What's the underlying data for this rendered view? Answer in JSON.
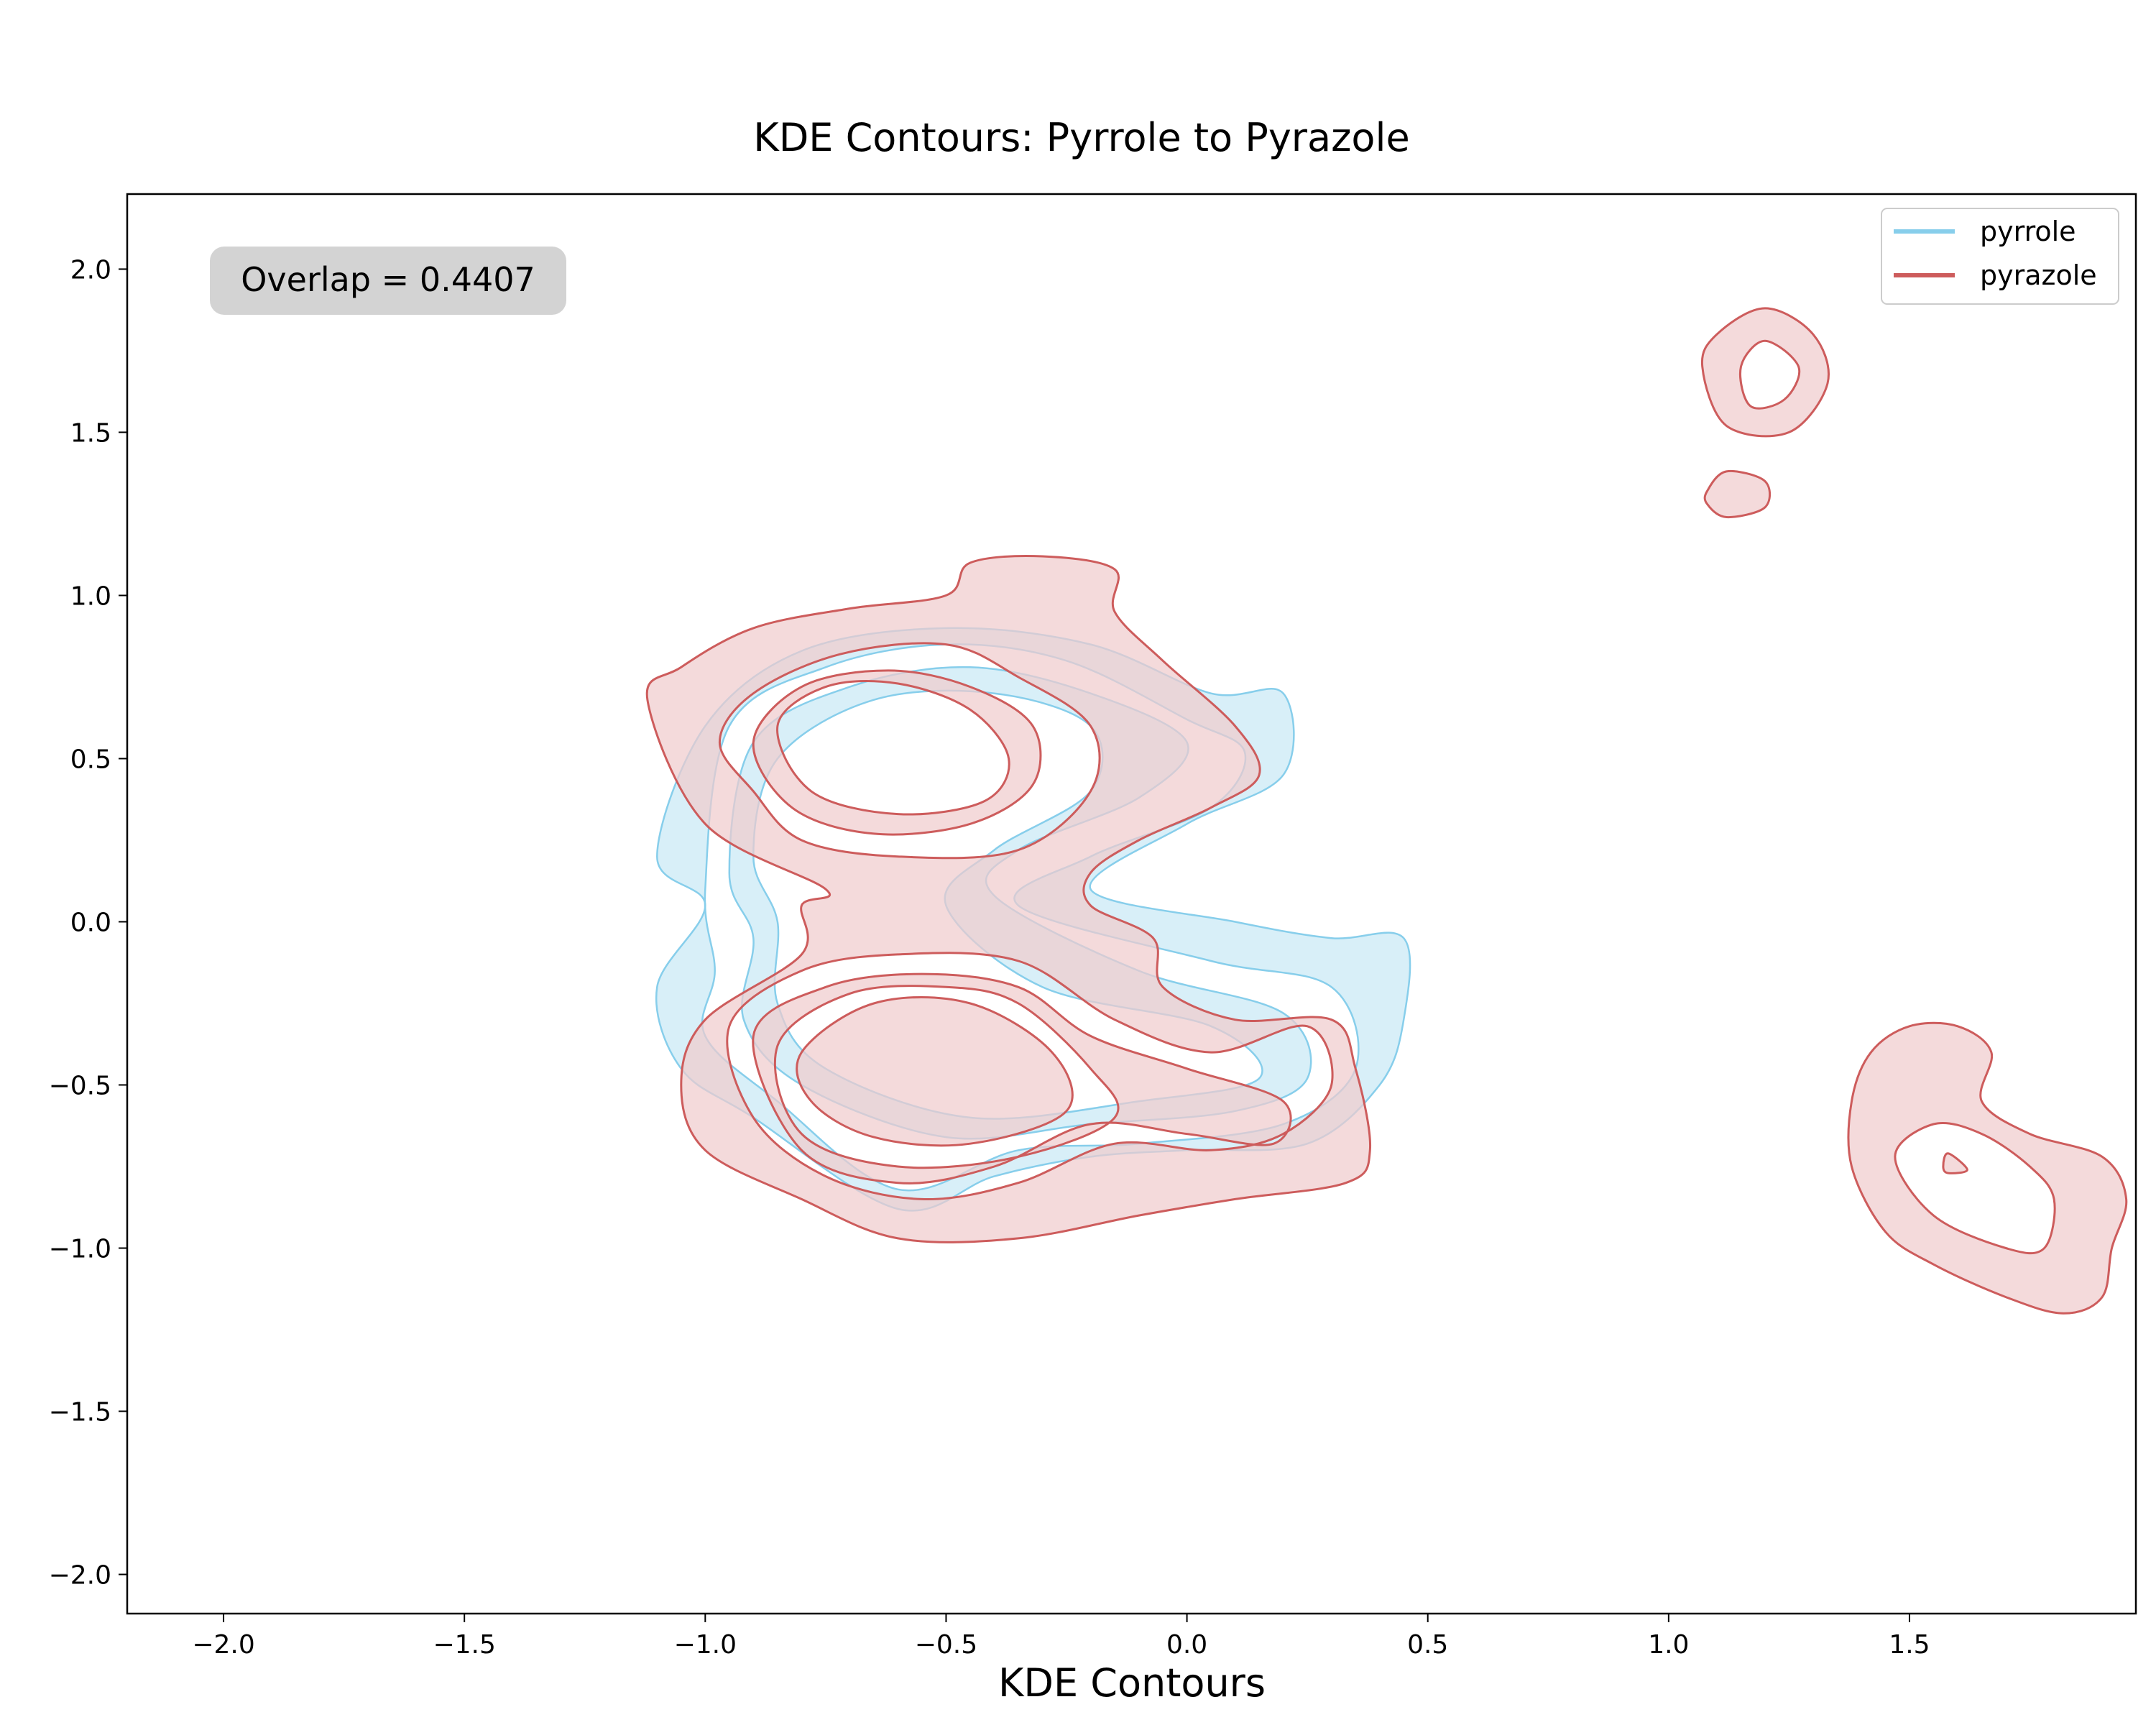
{
  "chart_data": {
    "type": "contour",
    "title": "KDE Contours: Pyrrole to Pyrazole",
    "xlabel": "KDE Contours",
    "ylabel": "",
    "xlim": [
      -2.2,
      1.97
    ],
    "ylim": [
      -2.12,
      2.23
    ],
    "x_ticks": [
      "−2.0",
      "−1.5",
      "−1.0",
      "−0.5",
      "0.0",
      "0.5",
      "1.0",
      "1.5"
    ],
    "x_tick_values": [
      -2.0,
      -1.5,
      -1.0,
      -0.5,
      0.0,
      0.5,
      1.0,
      1.5
    ],
    "y_ticks": [
      "−2.0",
      "−1.5",
      "−1.0",
      "−0.5",
      "0.0",
      "0.5",
      "1.0",
      "1.5",
      "2.0"
    ],
    "y_tick_values": [
      -2.0,
      -1.5,
      -1.0,
      -0.5,
      0.0,
      0.5,
      1.0,
      1.5,
      2.0
    ],
    "grid": false,
    "legend_position": "top-right",
    "annotation": "Overlap = 0.4407",
    "series": [
      {
        "name": "pyrrole",
        "color": "#87ceeb",
        "fill": "#d6eef8",
        "contours": [
          [
            [
              -1.1,
              0.2
            ],
            [
              -1.0,
              0.6
            ],
            [
              -0.8,
              0.83
            ],
            [
              -0.5,
              0.9
            ],
            [
              -0.2,
              0.85
            ],
            [
              0.05,
              0.7
            ],
            [
              0.2,
              0.7
            ],
            [
              0.2,
              0.45
            ],
            [
              0.0,
              0.3
            ],
            [
              -0.2,
              0.1
            ],
            [
              0.1,
              0.0
            ],
            [
              0.3,
              -0.05
            ],
            [
              0.45,
              -0.05
            ],
            [
              0.45,
              -0.3
            ],
            [
              0.4,
              -0.5
            ],
            [
              0.25,
              -0.68
            ],
            [
              0.0,
              -0.7
            ],
            [
              -0.2,
              -0.72
            ],
            [
              -0.4,
              -0.78
            ],
            [
              -0.6,
              -0.88
            ],
            [
              -0.9,
              -0.6
            ],
            [
              -1.05,
              -0.45
            ],
            [
              -1.1,
              -0.2
            ],
            [
              -1.0,
              0.05
            ]
          ],
          [
            [
              -1.0,
              0.1
            ],
            [
              -0.95,
              0.6
            ],
            [
              -0.75,
              0.78
            ],
            [
              -0.5,
              0.85
            ],
            [
              -0.25,
              0.8
            ],
            [
              0.0,
              0.62
            ],
            [
              0.12,
              0.52
            ],
            [
              0.05,
              0.35
            ],
            [
              -0.2,
              0.2
            ],
            [
              -0.35,
              0.05
            ],
            [
              0.05,
              -0.12
            ],
            [
              0.3,
              -0.2
            ],
            [
              0.35,
              -0.45
            ],
            [
              0.2,
              -0.62
            ],
            [
              -0.1,
              -0.68
            ],
            [
              -0.35,
              -0.7
            ],
            [
              -0.6,
              -0.82
            ],
            [
              -0.85,
              -0.55
            ],
            [
              -1.0,
              -0.35
            ],
            [
              -0.98,
              -0.15
            ]
          ],
          [
            [
              -0.95,
              0.15
            ],
            [
              -0.9,
              0.55
            ],
            [
              -0.7,
              0.72
            ],
            [
              -0.45,
              0.78
            ],
            [
              -0.2,
              0.7
            ],
            [
              0.0,
              0.55
            ],
            [
              -0.1,
              0.38
            ],
            [
              -0.35,
              0.22
            ],
            [
              -0.4,
              0.08
            ],
            [
              -0.1,
              -0.15
            ],
            [
              0.2,
              -0.28
            ],
            [
              0.25,
              -0.48
            ],
            [
              0.1,
              -0.58
            ],
            [
              -0.2,
              -0.62
            ],
            [
              -0.5,
              -0.66
            ],
            [
              -0.8,
              -0.5
            ],
            [
              -0.92,
              -0.3
            ],
            [
              -0.9,
              -0.05
            ]
          ],
          [
            [
              -0.9,
              0.2
            ],
            [
              -0.85,
              0.5
            ],
            [
              -0.65,
              0.68
            ],
            [
              -0.4,
              0.7
            ],
            [
              -0.2,
              0.6
            ],
            [
              -0.2,
              0.4
            ],
            [
              -0.4,
              0.22
            ],
            [
              -0.5,
              0.05
            ],
            [
              -0.3,
              -0.2
            ],
            [
              0.05,
              -0.32
            ],
            [
              0.15,
              -0.48
            ],
            [
              -0.1,
              -0.55
            ],
            [
              -0.45,
              -0.6
            ],
            [
              -0.75,
              -0.45
            ],
            [
              -0.85,
              -0.25
            ],
            [
              -0.85,
              0.0
            ]
          ]
        ]
      },
      {
        "name": "pyrazole",
        "color": "#cd5c5c",
        "fill": "#f0cccd",
        "contours": [
          [
            [
              -1.12,
              0.68
            ],
            [
              -1.05,
              0.78
            ],
            [
              -0.9,
              0.9
            ],
            [
              -0.7,
              0.96
            ],
            [
              -0.5,
              1.0
            ],
            [
              -0.45,
              1.1
            ],
            [
              -0.3,
              1.12
            ],
            [
              -0.15,
              1.08
            ],
            [
              -0.15,
              0.95
            ],
            [
              -0.05,
              0.8
            ],
            [
              0.1,
              0.6
            ],
            [
              0.15,
              0.45
            ],
            [
              0.05,
              0.35
            ],
            [
              -0.1,
              0.25
            ],
            [
              -0.2,
              0.15
            ],
            [
              -0.2,
              0.05
            ],
            [
              -0.07,
              -0.05
            ],
            [
              -0.05,
              -0.2
            ],
            [
              0.1,
              -0.3
            ],
            [
              0.3,
              -0.3
            ],
            [
              0.35,
              -0.45
            ],
            [
              0.38,
              -0.7
            ],
            [
              0.33,
              -0.8
            ],
            [
              0.1,
              -0.85
            ],
            [
              -0.1,
              -0.9
            ],
            [
              -0.35,
              -0.97
            ],
            [
              -0.6,
              -0.97
            ],
            [
              -0.8,
              -0.85
            ],
            [
              -1.0,
              -0.7
            ],
            [
              -1.05,
              -0.5
            ],
            [
              -1.0,
              -0.3
            ],
            [
              -0.8,
              -0.1
            ],
            [
              -0.8,
              0.05
            ],
            [
              -0.75,
              0.1
            ],
            [
              -1.0,
              0.3
            ]
          ],
          [
            [
              -0.97,
              0.55
            ],
            [
              -0.9,
              0.7
            ],
            [
              -0.72,
              0.82
            ],
            [
              -0.5,
              0.85
            ],
            [
              -0.35,
              0.75
            ],
            [
              -0.2,
              0.6
            ],
            [
              -0.2,
              0.4
            ],
            [
              -0.35,
              0.22
            ],
            [
              -0.6,
              0.2
            ],
            [
              -0.8,
              0.25
            ],
            [
              -0.9,
              0.4
            ]
          ],
          [
            [
              -0.9,
              0.55
            ],
            [
              -0.8,
              0.72
            ],
            [
              -0.62,
              0.77
            ],
            [
              -0.45,
              0.72
            ],
            [
              -0.32,
              0.6
            ],
            [
              -0.32,
              0.42
            ],
            [
              -0.45,
              0.3
            ],
            [
              -0.65,
              0.27
            ],
            [
              -0.82,
              0.35
            ]
          ],
          [
            [
              -0.85,
              0.6
            ],
            [
              -0.75,
              0.72
            ],
            [
              -0.6,
              0.73
            ],
            [
              -0.45,
              0.65
            ],
            [
              -0.37,
              0.5
            ],
            [
              -0.42,
              0.37
            ],
            [
              -0.6,
              0.33
            ],
            [
              -0.78,
              0.4
            ]
          ],
          [
            [
              -0.95,
              -0.32
            ],
            [
              -0.8,
              -0.15
            ],
            [
              -0.6,
              -0.1
            ],
            [
              -0.35,
              -0.12
            ],
            [
              -0.15,
              -0.3
            ],
            [
              0.05,
              -0.4
            ],
            [
              0.25,
              -0.32
            ],
            [
              0.3,
              -0.5
            ],
            [
              0.2,
              -0.65
            ],
            [
              0.05,
              -0.7
            ],
            [
              -0.15,
              -0.68
            ],
            [
              -0.35,
              -0.8
            ],
            [
              -0.55,
              -0.85
            ],
            [
              -0.75,
              -0.78
            ],
            [
              -0.9,
              -0.6
            ]
          ],
          [
            [
              -0.9,
              -0.35
            ],
            [
              -0.75,
              -0.2
            ],
            [
              -0.55,
              -0.16
            ],
            [
              -0.35,
              -0.2
            ],
            [
              -0.2,
              -0.35
            ],
            [
              0.0,
              -0.45
            ],
            [
              0.2,
              -0.55
            ],
            [
              0.18,
              -0.68
            ],
            [
              0.0,
              -0.65
            ],
            [
              -0.2,
              -0.62
            ],
            [
              -0.4,
              -0.75
            ],
            [
              -0.6,
              -0.8
            ],
            [
              -0.8,
              -0.7
            ]
          ],
          [
            [
              -0.85,
              -0.38
            ],
            [
              -0.7,
              -0.22
            ],
            [
              -0.5,
              -0.2
            ],
            [
              -0.35,
              -0.25
            ],
            [
              -0.2,
              -0.45
            ],
            [
              -0.15,
              -0.6
            ],
            [
              -0.35,
              -0.72
            ],
            [
              -0.6,
              -0.75
            ],
            [
              -0.8,
              -0.65
            ]
          ],
          [
            [
              -0.8,
              -0.4
            ],
            [
              -0.65,
              -0.25
            ],
            [
              -0.45,
              -0.25
            ],
            [
              -0.28,
              -0.4
            ],
            [
              -0.25,
              -0.58
            ],
            [
              -0.45,
              -0.68
            ],
            [
              -0.65,
              -0.66
            ],
            [
              -0.78,
              -0.55
            ]
          ],
          [
            [
              1.07,
              1.7
            ],
            [
              1.1,
              1.8
            ],
            [
              1.2,
              1.88
            ],
            [
              1.3,
              1.8
            ],
            [
              1.33,
              1.65
            ],
            [
              1.25,
              1.5
            ],
            [
              1.12,
              1.52
            ]
          ],
          [
            [
              1.15,
              1.7
            ],
            [
              1.2,
              1.78
            ],
            [
              1.27,
              1.7
            ],
            [
              1.24,
              1.6
            ],
            [
              1.17,
              1.58
            ]
          ],
          [
            [
              1.08,
              1.32
            ],
            [
              1.12,
              1.38
            ],
            [
              1.2,
              1.35
            ],
            [
              1.2,
              1.27
            ],
            [
              1.12,
              1.24
            ],
            [
              1.08,
              1.28
            ]
          ],
          [
            [
              1.42,
              -0.4
            ],
            [
              1.5,
              -0.32
            ],
            [
              1.6,
              -0.32
            ],
            [
              1.67,
              -0.4
            ],
            [
              1.65,
              -0.55
            ],
            [
              1.75,
              -0.65
            ],
            [
              1.9,
              -0.72
            ],
            [
              1.95,
              -0.85
            ],
            [
              1.92,
              -1.0
            ],
            [
              1.9,
              -1.15
            ],
            [
              1.82,
              -1.2
            ],
            [
              1.7,
              -1.15
            ],
            [
              1.55,
              -1.05
            ],
            [
              1.45,
              -0.95
            ],
            [
              1.38,
              -0.75
            ],
            [
              1.38,
              -0.55
            ]
          ],
          [
            [
              1.47,
              -0.72
            ],
            [
              1.55,
              -0.62
            ],
            [
              1.65,
              -0.65
            ],
            [
              1.75,
              -0.75
            ],
            [
              1.8,
              -0.85
            ],
            [
              1.78,
              -1.0
            ],
            [
              1.7,
              -1.0
            ],
            [
              1.55,
              -0.9
            ]
          ],
          [
            [
              1.57,
              -0.75
            ],
            [
              1.58,
              -0.71
            ],
            [
              1.62,
              -0.76
            ],
            [
              1.58,
              -0.77
            ]
          ]
        ]
      }
    ]
  }
}
